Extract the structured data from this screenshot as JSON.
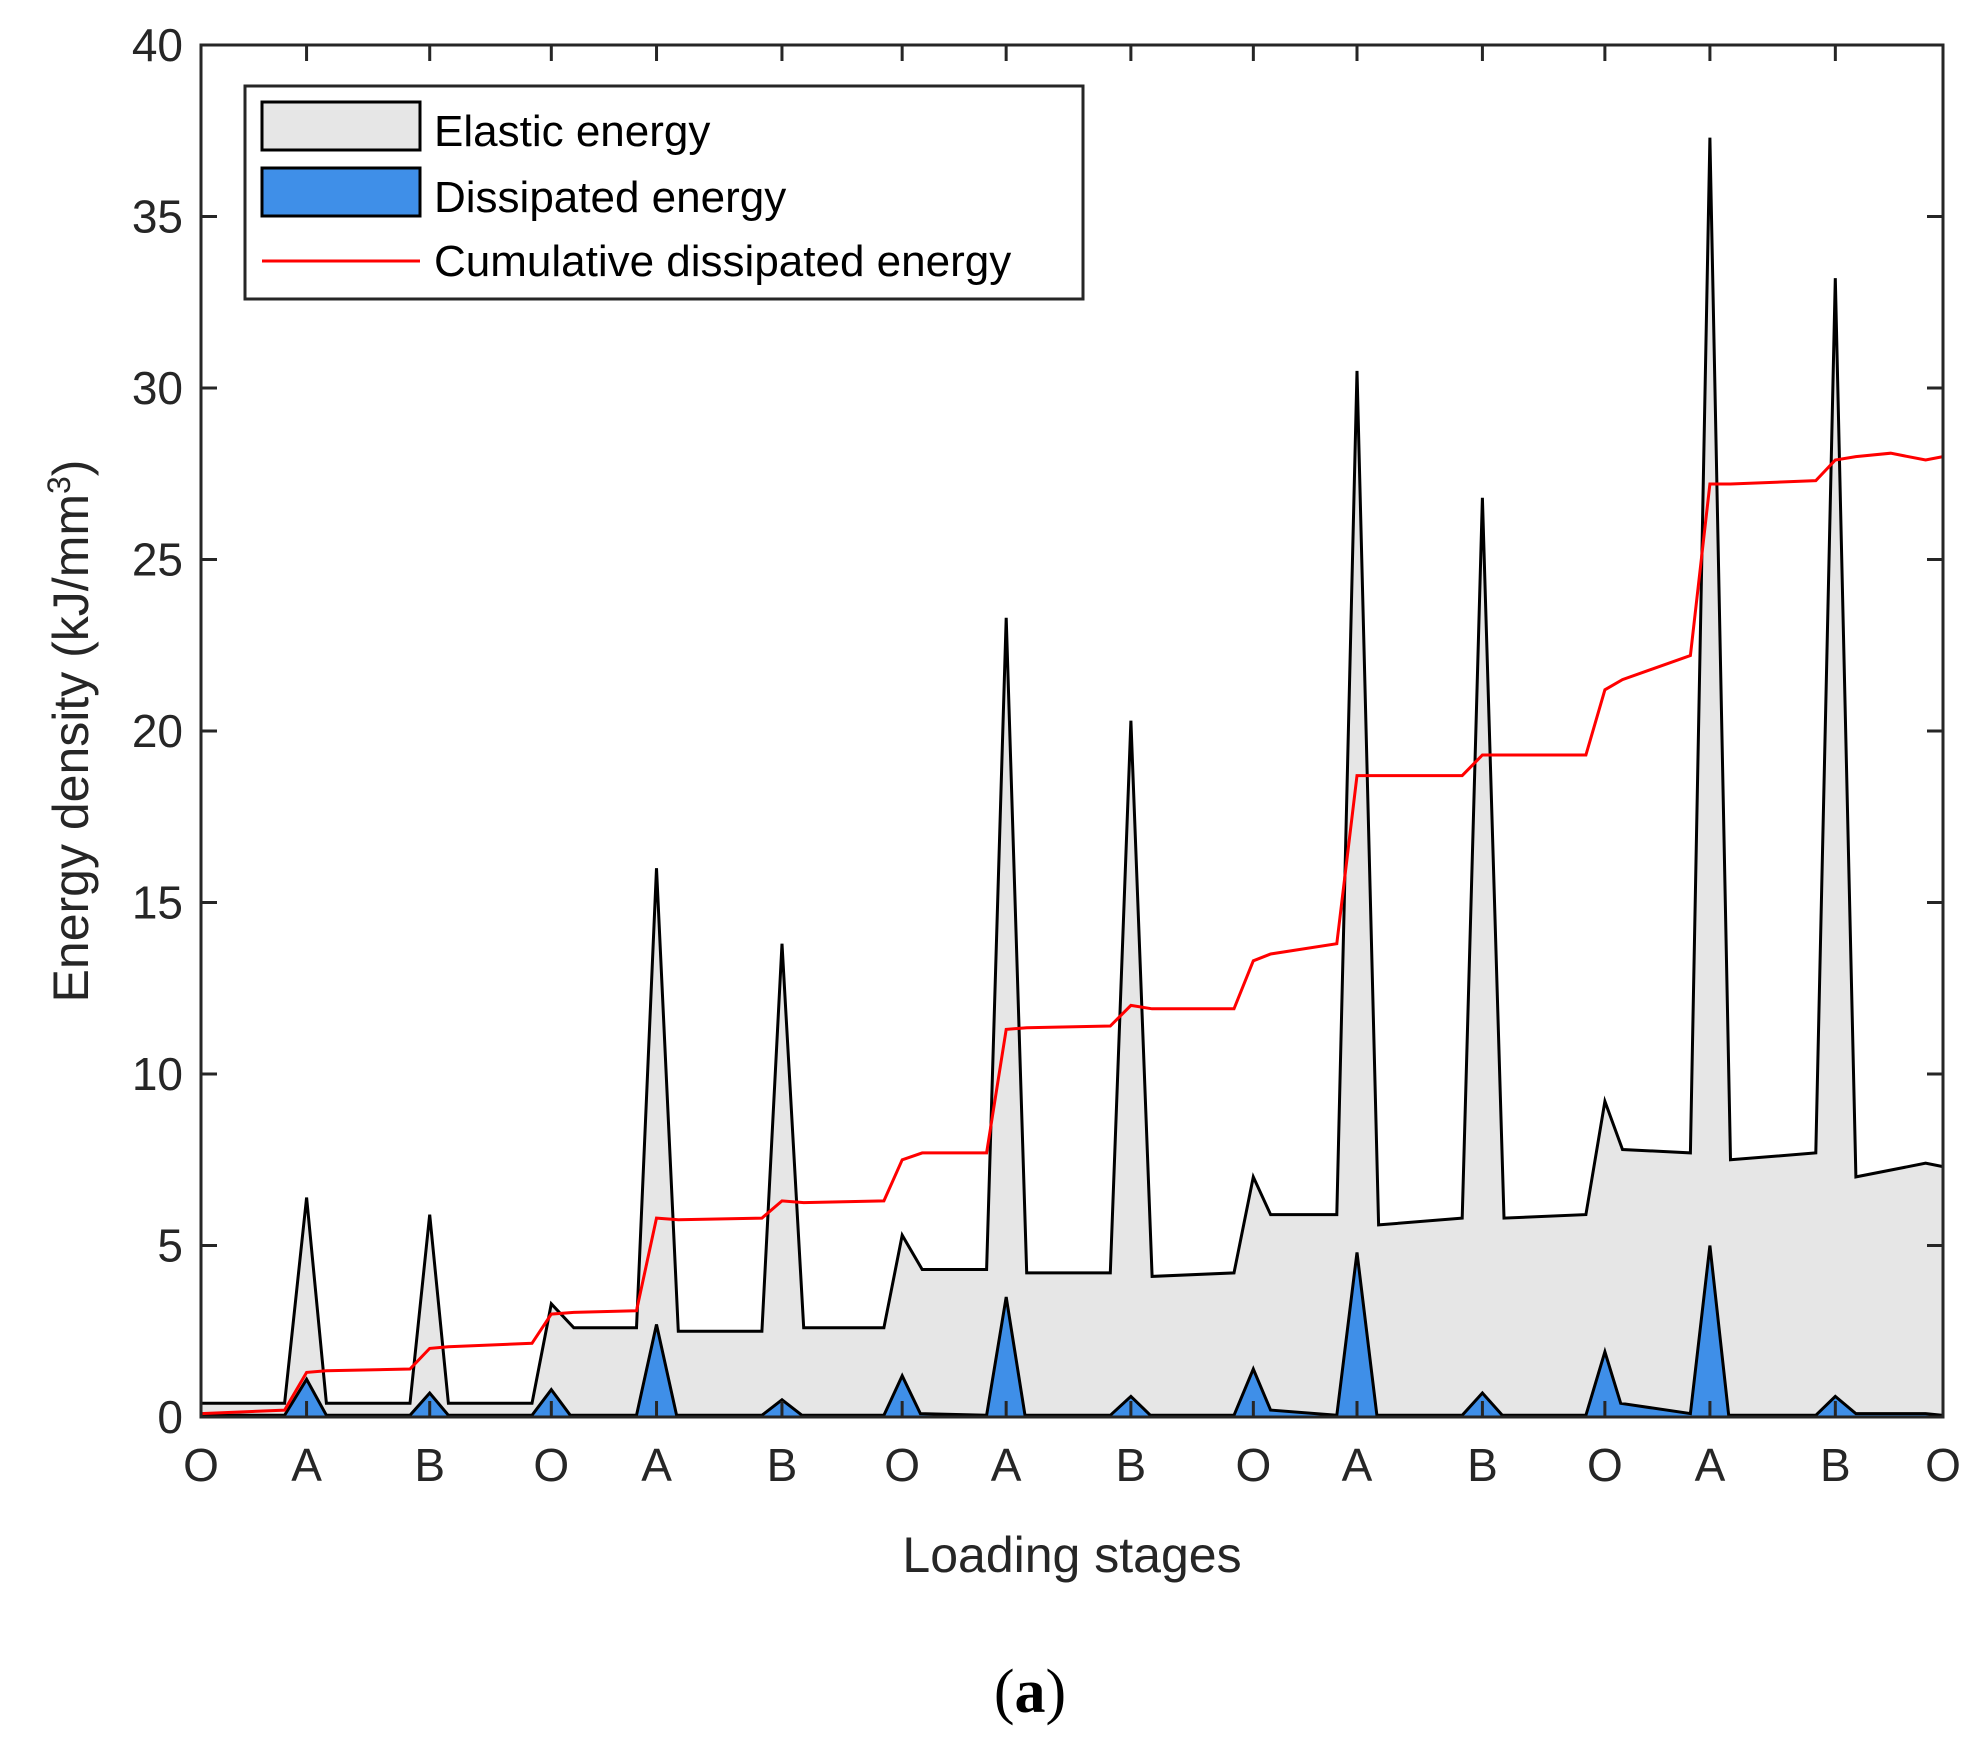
{
  "figure": {
    "caption_open": "(",
    "caption_letter": "a",
    "caption_close": ")"
  },
  "colors": {
    "elastic_fill": "#e6e6e6",
    "dissipated_fill": "#3f8fe8",
    "cumulative_line": "#ff0000",
    "outline": "#000000",
    "axis": "#262626"
  },
  "chart_data": {
    "type": "area",
    "title": "",
    "xlabel": "Loading stages",
    "ylabel_main": "Energy density (kJ/mm",
    "ylabel_sup": "3",
    "ylabel_close": ")",
    "ylim": [
      0,
      40
    ],
    "xlim": [
      0,
      1
    ],
    "y_tick_values": [
      0,
      5,
      10,
      15,
      20,
      25,
      30,
      35,
      40
    ],
    "y_tick_labels": [
      "0",
      "5",
      "10",
      "15",
      "20",
      "25",
      "30",
      "35",
      "40"
    ],
    "x_tick_positions": [
      0,
      0.0606,
      0.1313,
      0.2011,
      0.2615,
      0.3335,
      0.4025,
      0.4622,
      0.5338,
      0.6041,
      0.6636,
      0.7356,
      0.8059,
      0.8662,
      0.9382,
      1.0
    ],
    "x_tick_labels": [
      "O",
      "A",
      "B",
      "O",
      "A",
      "B",
      "O",
      "A",
      "B",
      "O",
      "A",
      "B",
      "O",
      "A",
      "B",
      "O"
    ],
    "legend": {
      "position": "top-left",
      "entries": [
        "Elastic energy",
        "Dissipated energy",
        "Cumulative dissipated energy"
      ]
    },
    "series": [
      {
        "name": "Elastic energy",
        "style": "area",
        "points": [
          [
            0,
            0.4
          ],
          [
            0.048,
            0.4
          ],
          [
            0.0606,
            6.4
          ],
          [
            0.072,
            0.4
          ],
          [
            0.12,
            0.4
          ],
          [
            0.1313,
            5.9
          ],
          [
            0.142,
            0.4
          ],
          [
            0.19,
            0.4
          ],
          [
            0.2011,
            3.3
          ],
          [
            0.214,
            2.6
          ],
          [
            0.25,
            2.6
          ],
          [
            0.2615,
            16.0
          ],
          [
            0.274,
            2.5
          ],
          [
            0.322,
            2.5
          ],
          [
            0.3335,
            13.8
          ],
          [
            0.346,
            2.6
          ],
          [
            0.392,
            2.6
          ],
          [
            0.4025,
            5.3
          ],
          [
            0.414,
            4.3
          ],
          [
            0.451,
            4.3
          ],
          [
            0.4622,
            23.3
          ],
          [
            0.474,
            4.2
          ],
          [
            0.522,
            4.2
          ],
          [
            0.5338,
            20.3
          ],
          [
            0.546,
            4.1
          ],
          [
            0.593,
            4.2
          ],
          [
            0.6041,
            7.0
          ],
          [
            0.614,
            5.9
          ],
          [
            0.652,
            5.9
          ],
          [
            0.6636,
            30.5
          ],
          [
            0.676,
            5.6
          ],
          [
            0.724,
            5.8
          ],
          [
            0.7356,
            26.8
          ],
          [
            0.748,
            5.8
          ],
          [
            0.795,
            5.9
          ],
          [
            0.8059,
            9.2
          ],
          [
            0.816,
            7.8
          ],
          [
            0.855,
            7.7
          ],
          [
            0.8662,
            37.3
          ],
          [
            0.878,
            7.5
          ],
          [
            0.927,
            7.7
          ],
          [
            0.9382,
            33.2
          ],
          [
            0.95,
            7.0
          ],
          [
            0.99,
            7.4
          ],
          [
            1.0,
            7.3
          ],
          [
            1.0,
            0
          ]
        ]
      },
      {
        "name": "Dissipated energy",
        "style": "area",
        "points": [
          [
            0,
            0.05
          ],
          [
            0.048,
            0.05
          ],
          [
            0.0606,
            1.1
          ],
          [
            0.072,
            0.05
          ],
          [
            0.12,
            0.05
          ],
          [
            0.1313,
            0.7
          ],
          [
            0.142,
            0.05
          ],
          [
            0.19,
            0.05
          ],
          [
            0.2011,
            0.8
          ],
          [
            0.212,
            0.05
          ],
          [
            0.25,
            0.05
          ],
          [
            0.2615,
            2.7
          ],
          [
            0.273,
            0.05
          ],
          [
            0.322,
            0.05
          ],
          [
            0.3335,
            0.5
          ],
          [
            0.345,
            0.05
          ],
          [
            0.392,
            0.05
          ],
          [
            0.4025,
            1.2
          ],
          [
            0.413,
            0.1
          ],
          [
            0.451,
            0.05
          ],
          [
            0.4622,
            3.5
          ],
          [
            0.473,
            0.05
          ],
          [
            0.522,
            0.05
          ],
          [
            0.5338,
            0.6
          ],
          [
            0.545,
            0.05
          ],
          [
            0.593,
            0.05
          ],
          [
            0.6041,
            1.4
          ],
          [
            0.614,
            0.2
          ],
          [
            0.652,
            0.05
          ],
          [
            0.6636,
            4.8
          ],
          [
            0.675,
            0.05
          ],
          [
            0.724,
            0.05
          ],
          [
            0.7356,
            0.7
          ],
          [
            0.747,
            0.05
          ],
          [
            0.795,
            0.05
          ],
          [
            0.8059,
            1.9
          ],
          [
            0.815,
            0.4
          ],
          [
            0.855,
            0.1
          ],
          [
            0.8662,
            5.0
          ],
          [
            0.877,
            0.05
          ],
          [
            0.927,
            0.05
          ],
          [
            0.9382,
            0.6
          ],
          [
            0.95,
            0.1
          ],
          [
            0.99,
            0.1
          ],
          [
            1.0,
            0.05
          ]
        ]
      },
      {
        "name": "Cumulative dissipated energy",
        "style": "line",
        "points": [
          [
            0,
            0.1
          ],
          [
            0.048,
            0.2
          ],
          [
            0.0606,
            1.3
          ],
          [
            0.072,
            1.35
          ],
          [
            0.12,
            1.4
          ],
          [
            0.1313,
            2.0
          ],
          [
            0.142,
            2.05
          ],
          [
            0.19,
            2.15
          ],
          [
            0.2011,
            3.0
          ],
          [
            0.214,
            3.05
          ],
          [
            0.25,
            3.1
          ],
          [
            0.2615,
            5.8
          ],
          [
            0.274,
            5.75
          ],
          [
            0.322,
            5.8
          ],
          [
            0.3335,
            6.3
          ],
          [
            0.346,
            6.25
          ],
          [
            0.392,
            6.3
          ],
          [
            0.4025,
            7.5
          ],
          [
            0.414,
            7.7
          ],
          [
            0.451,
            7.7
          ],
          [
            0.4622,
            11.3
          ],
          [
            0.474,
            11.35
          ],
          [
            0.522,
            11.4
          ],
          [
            0.5338,
            12.0
          ],
          [
            0.546,
            11.9
          ],
          [
            0.593,
            11.9
          ],
          [
            0.6041,
            13.3
          ],
          [
            0.614,
            13.5
          ],
          [
            0.652,
            13.8
          ],
          [
            0.6636,
            18.7
          ],
          [
            0.676,
            18.7
          ],
          [
            0.724,
            18.7
          ],
          [
            0.7356,
            19.3
          ],
          [
            0.748,
            19.3
          ],
          [
            0.795,
            19.3
          ],
          [
            0.8059,
            21.2
          ],
          [
            0.816,
            21.5
          ],
          [
            0.855,
            22.2
          ],
          [
            0.8662,
            27.2
          ],
          [
            0.878,
            27.2
          ],
          [
            0.927,
            27.3
          ],
          [
            0.9382,
            27.9
          ],
          [
            0.95,
            28.0
          ],
          [
            0.97,
            28.1
          ],
          [
            0.99,
            27.9
          ],
          [
            1.0,
            28.0
          ]
        ]
      }
    ]
  }
}
